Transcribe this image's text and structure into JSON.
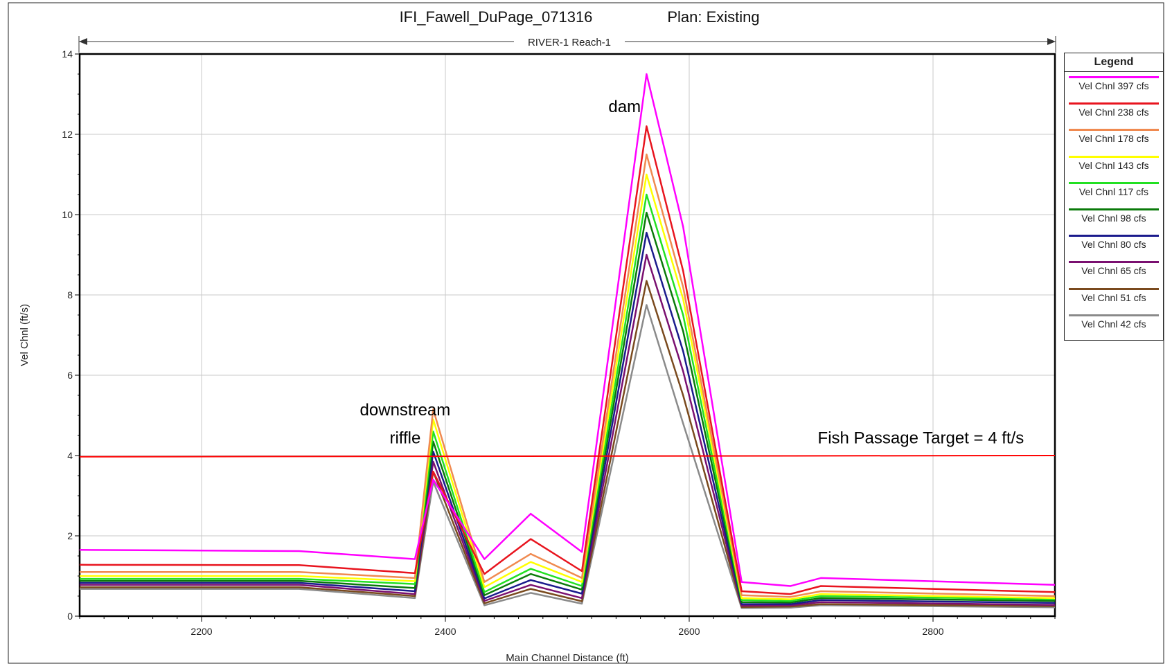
{
  "chart_data": {
    "type": "line",
    "title": "IFI_Fawell_DuPage_071316",
    "plan": "Plan: Existing",
    "reach": "RIVER-1 Reach-1",
    "xlabel": "Main Channel Distance (ft)",
    "ylabel": "Vel Chnl (ft/s)",
    "xlim": [
      2100,
      2900
    ],
    "ylim": [
      0,
      14
    ],
    "xticks": [
      2200,
      2400,
      2600,
      2800
    ],
    "yticks": [
      0,
      2,
      4,
      6,
      8,
      10,
      12,
      14
    ],
    "grid": true,
    "legend_title": "Legend",
    "legend_position": "right",
    "x": [
      2100,
      2280,
      2375,
      2390,
      2432,
      2470,
      2512,
      2565,
      2595,
      2643,
      2683,
      2708,
      2900
    ],
    "series": [
      {
        "name": "Vel Chnl 397 cfs",
        "color": "#ff00ff",
        "values": [
          1.65,
          1.62,
          1.42,
          3.4,
          1.42,
          2.55,
          1.6,
          13.5,
          9.7,
          0.85,
          0.75,
          0.95,
          0.78
        ]
      },
      {
        "name": "Vel Chnl 238 cfs",
        "color": "#e8141e",
        "values": [
          1.28,
          1.27,
          1.07,
          3.6,
          1.05,
          1.92,
          1.12,
          12.2,
          8.6,
          0.62,
          0.55,
          0.75,
          0.6
        ]
      },
      {
        "name": "Vel Chnl 178 cfs",
        "color": "#f08a50",
        "values": [
          1.1,
          1.1,
          0.95,
          5.15,
          0.85,
          1.55,
          0.95,
          11.5,
          8.2,
          0.52,
          0.48,
          0.62,
          0.5
        ]
      },
      {
        "name": "Vel Chnl 143 cfs",
        "color": "#ffff00",
        "values": [
          1.0,
          1.0,
          0.87,
          4.9,
          0.72,
          1.35,
          0.85,
          11.0,
          7.9,
          0.45,
          0.42,
          0.55,
          0.45
        ]
      },
      {
        "name": "Vel Chnl 117 cfs",
        "color": "#22e022",
        "values": [
          0.93,
          0.93,
          0.8,
          4.6,
          0.6,
          1.18,
          0.75,
          10.5,
          7.5,
          0.4,
          0.38,
          0.5,
          0.42
        ]
      },
      {
        "name": "Vel Chnl 98 cfs",
        "color": "#0a7a0a",
        "values": [
          0.88,
          0.88,
          0.7,
          4.35,
          0.52,
          1.05,
          0.66,
          10.05,
          7.1,
          0.35,
          0.34,
          0.45,
          0.38
        ]
      },
      {
        "name": "Vel Chnl 80 cfs",
        "color": "#1a1a8c",
        "values": [
          0.83,
          0.83,
          0.62,
          4.1,
          0.44,
          0.9,
          0.56,
          9.55,
          6.6,
          0.3,
          0.3,
          0.4,
          0.33
        ]
      },
      {
        "name": "Vel Chnl 65 cfs",
        "color": "#7a1070",
        "values": [
          0.78,
          0.78,
          0.55,
          3.85,
          0.38,
          0.78,
          0.45,
          9.0,
          6.1,
          0.26,
          0.27,
          0.35,
          0.28
        ]
      },
      {
        "name": "Vel Chnl 51 cfs",
        "color": "#7a4a1e",
        "values": [
          0.72,
          0.72,
          0.5,
          3.6,
          0.32,
          0.68,
          0.37,
          8.35,
          5.5,
          0.23,
          0.24,
          0.3,
          0.25
        ]
      },
      {
        "name": "Vel Chnl 42 cfs",
        "color": "#8a8a8a",
        "values": [
          0.68,
          0.68,
          0.45,
          3.35,
          0.27,
          0.58,
          0.31,
          7.75,
          4.8,
          0.2,
          0.21,
          0.27,
          0.22
        ]
      }
    ],
    "reference_line": {
      "y": 3.97,
      "y_end": 4.0,
      "color": "#ff0000"
    },
    "annotations": [
      {
        "text": "dam",
        "x": 2547,
        "y": 12.55
      },
      {
        "text": "downstream",
        "x": 2367,
        "y": 5.0
      },
      {
        "text": "riffle",
        "x": 2367,
        "y": 4.3
      },
      {
        "text": "Fish Passage Target = 4 ft/s",
        "x": 2790,
        "y": 4.3
      }
    ]
  }
}
